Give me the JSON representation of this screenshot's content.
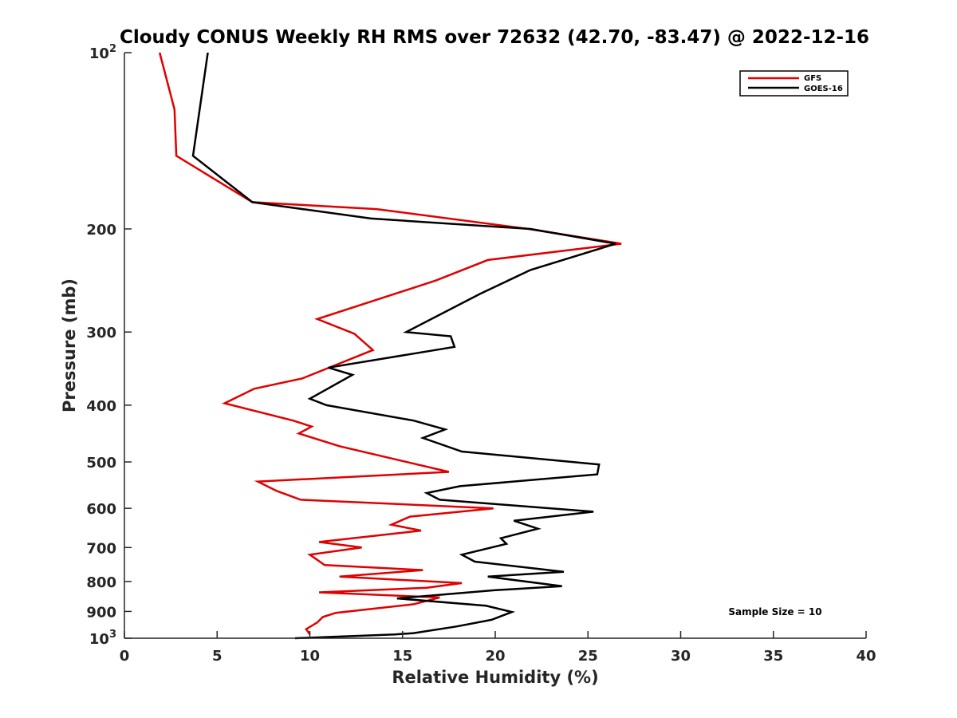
{
  "chart_data": {
    "type": "line",
    "title": "Cloudy CONUS Weekly RH RMS over 72632 (42.70, -83.47) @ 2022-12-16",
    "xlabel": "Relative Humidity (%)",
    "ylabel": "Pressure (mb)",
    "xlim": [
      0,
      40
    ],
    "ylim": [
      100,
      1000
    ],
    "y_scale": "log",
    "y_reversed": true,
    "x_ticks": [
      "0",
      "5",
      "10",
      "15",
      "20",
      "25",
      "30",
      "35",
      "40"
    ],
    "y_ticks": [
      {
        "value": 100,
        "base": "10",
        "exp": "2"
      },
      {
        "value": 200,
        "label": "200"
      },
      {
        "value": 300,
        "label": "300"
      },
      {
        "value": 400,
        "label": "400"
      },
      {
        "value": 500,
        "label": "500"
      },
      {
        "value": 600,
        "label": "600"
      },
      {
        "value": 700,
        "label": "700"
      },
      {
        "value": 800,
        "label": "800"
      },
      {
        "value": 900,
        "label": "900"
      },
      {
        "value": 1000,
        "base": "10",
        "exp": "3"
      }
    ],
    "grid": false,
    "legend_position": "top-right",
    "annotation": "Sample Size = 10",
    "series": [
      {
        "name": "GFS",
        "color": "#e00000",
        "points": [
          [
            1.9,
            100
          ],
          [
            2.7,
            125
          ],
          [
            2.8,
            150
          ],
          [
            6.9,
            180
          ],
          [
            13.6,
            185
          ],
          [
            21.8,
            200
          ],
          [
            26.8,
            212
          ],
          [
            19.6,
            226
          ],
          [
            16.8,
            245
          ],
          [
            10.4,
            285
          ],
          [
            12.4,
            302
          ],
          [
            13.4,
            322
          ],
          [
            9.6,
            360
          ],
          [
            7.0,
            375
          ],
          [
            5.4,
            397
          ],
          [
            9.1,
            425
          ],
          [
            10.1,
            435
          ],
          [
            9.4,
            447
          ],
          [
            11.6,
            470
          ],
          [
            17.5,
            520
          ],
          [
            7.2,
            540
          ],
          [
            8.2,
            560
          ],
          [
            9.5,
            580
          ],
          [
            19.9,
            600
          ],
          [
            15.4,
            620
          ],
          [
            14.4,
            640
          ],
          [
            16.0,
            655
          ],
          [
            10.5,
            685
          ],
          [
            12.8,
            700
          ],
          [
            10.0,
            720
          ],
          [
            10.8,
            750
          ],
          [
            16.1,
            765
          ],
          [
            11.6,
            785
          ],
          [
            18.2,
            805
          ],
          [
            16.3,
            820
          ],
          [
            10.5,
            835
          ],
          [
            17.0,
            852
          ],
          [
            15.6,
            875
          ],
          [
            11.4,
            905
          ],
          [
            10.7,
            920
          ],
          [
            10.4,
            940
          ],
          [
            9.8,
            965
          ],
          [
            10.0,
            985
          ]
        ]
      },
      {
        "name": "GOES-16",
        "color": "#000000",
        "points": [
          [
            4.5,
            100
          ],
          [
            3.7,
            150
          ],
          [
            6.9,
            180
          ],
          [
            13.3,
            192
          ],
          [
            21.9,
            200
          ],
          [
            26.5,
            212
          ],
          [
            21.9,
            235
          ],
          [
            19.2,
            258
          ],
          [
            15.2,
            300
          ],
          [
            17.6,
            305
          ],
          [
            17.8,
            318
          ],
          [
            11.0,
            345
          ],
          [
            12.3,
            355
          ],
          [
            10.0,
            390
          ],
          [
            10.9,
            400
          ],
          [
            15.6,
            425
          ],
          [
            17.3,
            440
          ],
          [
            16.1,
            455
          ],
          [
            18.2,
            480
          ],
          [
            25.6,
            505
          ],
          [
            25.5,
            525
          ],
          [
            18.1,
            550
          ],
          [
            16.3,
            565
          ],
          [
            17.0,
            580
          ],
          [
            25.3,
            608
          ],
          [
            21.0,
            630
          ],
          [
            22.3,
            650
          ],
          [
            20.3,
            675
          ],
          [
            20.6,
            690
          ],
          [
            18.2,
            720
          ],
          [
            18.9,
            740
          ],
          [
            23.7,
            770
          ],
          [
            19.6,
            785
          ],
          [
            23.6,
            815
          ],
          [
            20.0,
            828
          ],
          [
            14.7,
            855
          ],
          [
            19.5,
            880
          ],
          [
            20.9,
            902
          ],
          [
            19.8,
            930
          ],
          [
            17.9,
            955
          ],
          [
            15.6,
            980
          ],
          [
            14.6,
            985
          ],
          [
            9.2,
            1000
          ]
        ]
      }
    ]
  }
}
